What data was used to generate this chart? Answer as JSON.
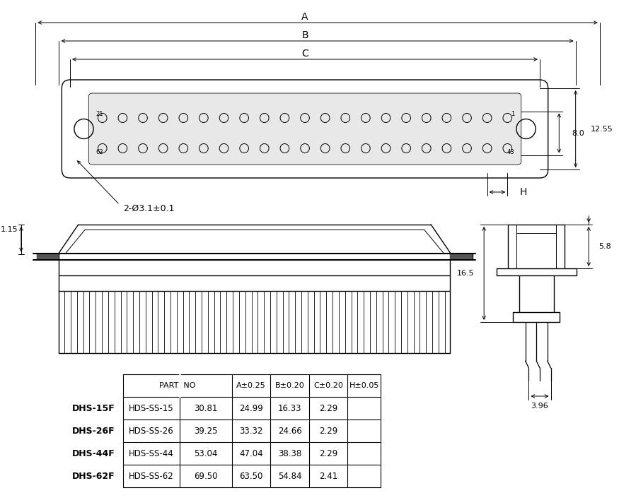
{
  "bg_color": "#ffffff",
  "line_color": "#000000",
  "table_headers": [
    "PART  NO",
    "A±0.25",
    "B±0.20",
    "C±0.20",
    "H±0.05"
  ],
  "table_rows": [
    [
      "DHS-15F",
      "HDS-SS-15",
      "30.81",
      "24.99",
      "16.33",
      "2.29"
    ],
    [
      "DHS-26F",
      "HDS-SS-26",
      "39.25",
      "33.32",
      "24.66",
      "2.29"
    ],
    [
      "DHS-44F",
      "HDS-SS-44",
      "53.04",
      "47.04",
      "38.38",
      "2.29"
    ],
    [
      "DHS-62F",
      "HDS-SS-62",
      "69.50",
      "63.50",
      "54.84",
      "2.41"
    ]
  ],
  "dim_labels": {
    "A": "A",
    "B": "B",
    "C": "C",
    "H": "H",
    "dim_8": "8.0",
    "dim_12": "12.55",
    "dim_1_15": "1.15",
    "dim_5_8": "5.8",
    "dim_16_5": "16.5",
    "dim_3_96": "3.96",
    "hole": "2-Ø3.1±0.1",
    "pin21": "21",
    "pin62": "62",
    "pin1": "1",
    "pin43": "43"
  }
}
